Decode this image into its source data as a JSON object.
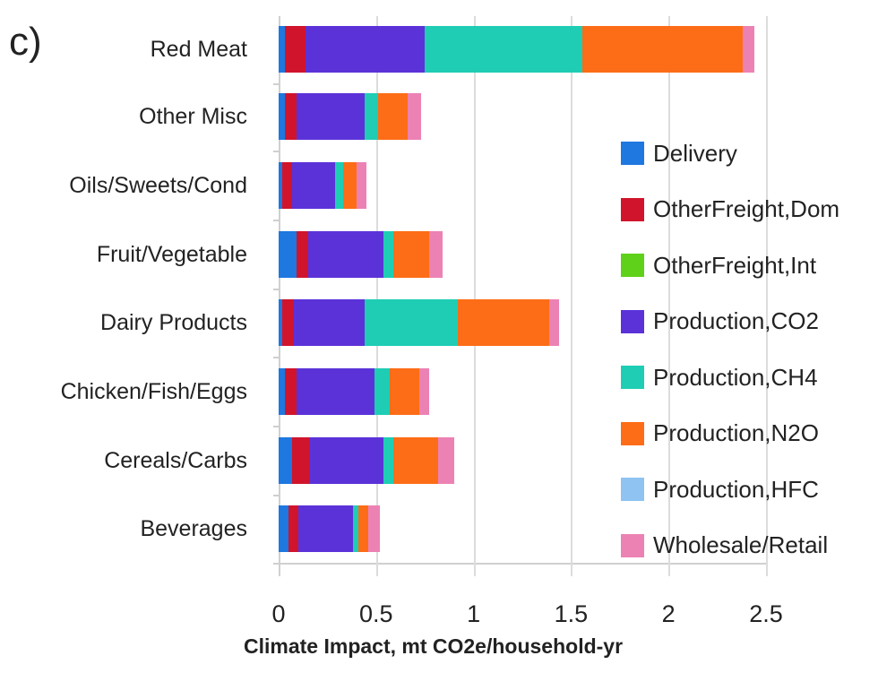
{
  "panel_label": "c)",
  "chart_data": {
    "type": "bar",
    "orientation": "horizontal",
    "stacked": true,
    "title": "",
    "xlabel": "Climate Impact, mt CO2e/household-yr",
    "ylabel": "",
    "xlim": [
      0,
      2.5
    ],
    "xticks": [
      "0",
      "0.5",
      "1",
      "1.5",
      "2",
      "2.5"
    ],
    "grid": "vertical",
    "legend_position": "right",
    "categories": [
      "Red Meat",
      "Other Misc",
      "Oils/Sweets/Cond",
      "Fruit/Vegetable",
      "Dairy Products",
      "Chicken/Fish/Eggs",
      "Cereals/Carbs",
      "Beverages"
    ],
    "series": [
      {
        "name": "Delivery",
        "color": "#1f77e0",
        "values": [
          0.03,
          0.03,
          0.02,
          0.09,
          0.02,
          0.03,
          0.07,
          0.05
        ]
      },
      {
        "name": "OtherFreight,Dom",
        "color": "#d0142c",
        "values": [
          0.11,
          0.06,
          0.05,
          0.06,
          0.06,
          0.06,
          0.09,
          0.05
        ]
      },
      {
        "name": "OtherFreight,Int",
        "color": "#5fd11a",
        "values": [
          0.0,
          0.0,
          0.0,
          0.0,
          0.0,
          0.0,
          0.0,
          0.0
        ]
      },
      {
        "name": "Production,CO2",
        "color": "#5b32d8",
        "values": [
          0.61,
          0.35,
          0.22,
          0.39,
          0.36,
          0.4,
          0.38,
          0.28
        ]
      },
      {
        "name": "Production,CH4",
        "color": "#1fcdb4",
        "values": [
          0.81,
          0.07,
          0.04,
          0.05,
          0.48,
          0.08,
          0.05,
          0.03
        ]
      },
      {
        "name": "Production,N2O",
        "color": "#fd6d17",
        "values": [
          0.82,
          0.15,
          0.07,
          0.18,
          0.47,
          0.15,
          0.23,
          0.05
        ]
      },
      {
        "name": "Production,HFC",
        "color": "#8ec3f2",
        "values": [
          0.0,
          0.0,
          0.0,
          0.0,
          0.0,
          0.0,
          0.0,
          0.0
        ]
      },
      {
        "name": "Wholesale/Retail",
        "color": "#ec82b4",
        "values": [
          0.06,
          0.07,
          0.05,
          0.07,
          0.05,
          0.05,
          0.08,
          0.06
        ]
      }
    ]
  }
}
